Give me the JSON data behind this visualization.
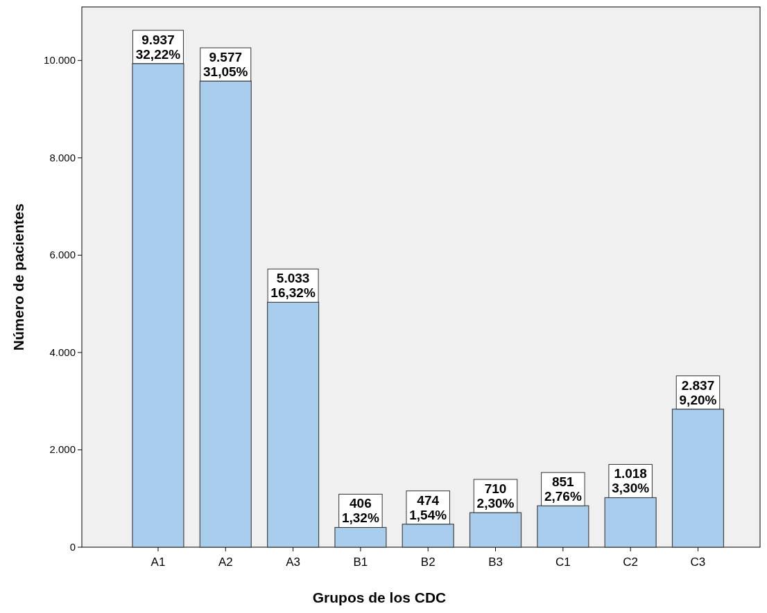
{
  "chart_data": {
    "type": "bar",
    "xlabel": "Grupos de los CDC",
    "ylabel": "Número de pacientes",
    "categories": [
      "A1",
      "A2",
      "A3",
      "B1",
      "B2",
      "B3",
      "C1",
      "C2",
      "C3"
    ],
    "values": [
      9937,
      9577,
      5033,
      406,
      474,
      710,
      851,
      1018,
      2837
    ],
    "value_labels": [
      "9.937\n32,22%",
      "9.577\n31,05%",
      "5.033\n16,32%",
      "406\n1,32%",
      "474\n1,54%",
      "710\n2,30%",
      "851\n2,76%",
      "1.018\n3,30%",
      "2.837\n9,20%"
    ],
    "color": "#a9cdec",
    "ylim": [
      0,
      11100
    ],
    "yticks": [
      {
        "value": 0,
        "label": "0"
      },
      {
        "value": 2000,
        "label": "2.000"
      },
      {
        "value": 4000,
        "label": "4.000"
      },
      {
        "value": 6000,
        "label": "6.000"
      },
      {
        "value": 8000,
        "label": "8.000"
      },
      {
        "value": 10000,
        "label": "10.000"
      }
    ],
    "grid": false
  }
}
